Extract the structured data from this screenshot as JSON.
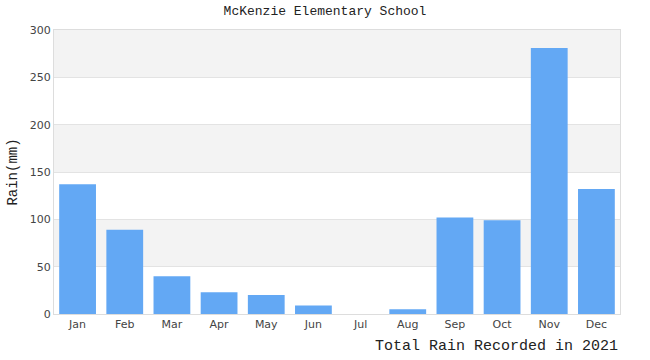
{
  "chart_data": {
    "type": "bar",
    "title": "McKenzie Elementary School",
    "ylabel": "Rain(mm)",
    "xlabel": "Total Rain Recorded in 2021",
    "categories": [
      "Jan",
      "Feb",
      "Mar",
      "Apr",
      "May",
      "Jun",
      "Jul",
      "Aug",
      "Sep",
      "Oct",
      "Nov",
      "Dec"
    ],
    "values": [
      137,
      89,
      40,
      23,
      20,
      9,
      0,
      5,
      102,
      99,
      281,
      132
    ],
    "color": "#63a8f4",
    "ylim": [
      0,
      300
    ],
    "yticks": [
      0,
      50,
      100,
      150,
      200,
      250,
      300
    ],
    "grid": true
  }
}
